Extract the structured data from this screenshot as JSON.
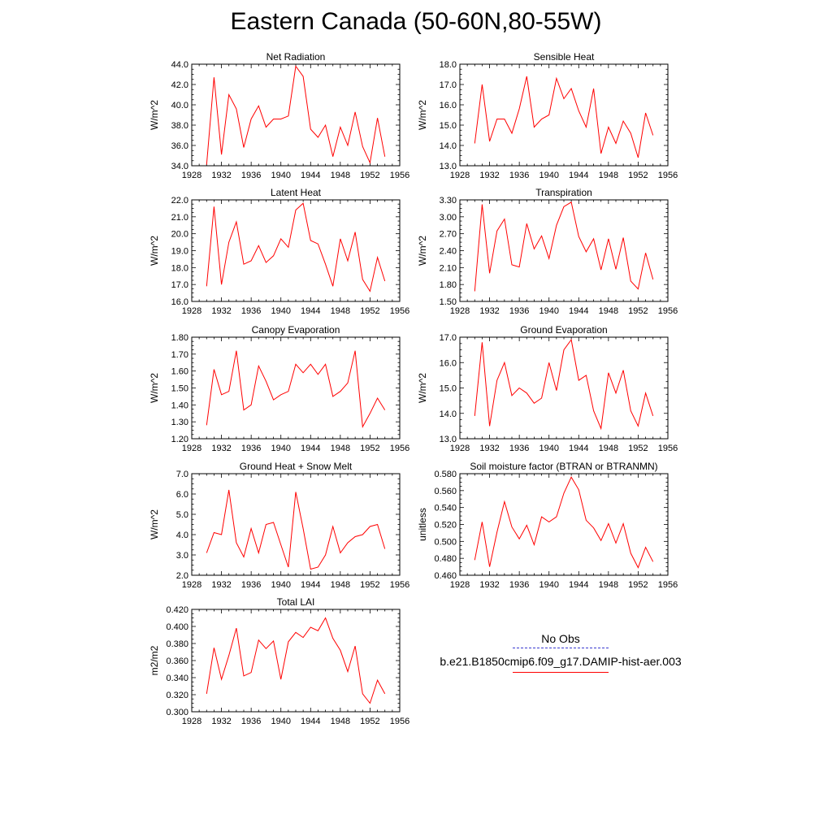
{
  "figure": {
    "title": "Eastern Canada (50-60N,80-55W)",
    "line_color": "#ff0000",
    "obs_color": "#3a3ad0"
  },
  "legend": {
    "obs_label": "No Obs",
    "model_label": "b.e21.B1850cmip6.f09_g17.DAMIP-hist-aer.003"
  },
  "chart_data": [
    {
      "type": "line",
      "title": "Net Radiation",
      "ylabel": "W/m^2",
      "xlim": [
        1928,
        1956
      ],
      "xticks": [
        1928,
        1932,
        1936,
        1940,
        1944,
        1948,
        1952,
        1956
      ],
      "ylim": [
        34.0,
        44.0
      ],
      "yticks": [
        "34.0",
        "36.0",
        "38.0",
        "40.0",
        "42.0",
        "44.0"
      ],
      "x": [
        1930,
        1931,
        1932,
        1933,
        1934,
        1935,
        1936,
        1937,
        1938,
        1939,
        1940,
        1941,
        1942,
        1943,
        1944,
        1945,
        1946,
        1947,
        1948,
        1949,
        1950,
        1951,
        1952,
        1953,
        1954
      ],
      "series": [
        {
          "values": [
            34.1,
            42.7,
            35.1,
            41.0,
            39.6,
            35.8,
            38.6,
            39.9,
            37.8,
            38.6,
            38.6,
            38.9,
            43.8,
            42.8,
            37.6,
            36.8,
            38.0,
            34.9,
            37.8,
            36.0,
            39.3,
            35.9,
            34.3,
            38.7,
            34.9
          ]
        }
      ]
    },
    {
      "type": "line",
      "title": "Sensible Heat",
      "ylabel": "W/m^2",
      "xlim": [
        1928,
        1956
      ],
      "xticks": [
        1928,
        1932,
        1936,
        1940,
        1944,
        1948,
        1952,
        1956
      ],
      "ylim": [
        13.0,
        18.0
      ],
      "yticks": [
        "13.0",
        "14.0",
        "15.0",
        "16.0",
        "17.0",
        "18.0"
      ],
      "x": [
        1930,
        1931,
        1932,
        1933,
        1934,
        1935,
        1936,
        1937,
        1938,
        1939,
        1940,
        1941,
        1942,
        1943,
        1944,
        1945,
        1946,
        1947,
        1948,
        1949,
        1950,
        1951,
        1952,
        1953,
        1954
      ],
      "series": [
        {
          "values": [
            14.1,
            17.0,
            14.2,
            15.3,
            15.3,
            14.6,
            15.8,
            17.4,
            14.9,
            15.3,
            15.5,
            17.3,
            16.3,
            16.8,
            15.7,
            14.9,
            16.8,
            13.6,
            14.9,
            14.1,
            15.2,
            14.6,
            13.4,
            15.6,
            14.5
          ]
        }
      ]
    },
    {
      "type": "line",
      "title": "Latent Heat",
      "ylabel": "W/m^2",
      "xlim": [
        1928,
        1956
      ],
      "xticks": [
        1928,
        1932,
        1936,
        1940,
        1944,
        1948,
        1952,
        1956
      ],
      "ylim": [
        16.0,
        22.0
      ],
      "yticks": [
        "16.0",
        "17.0",
        "18.0",
        "19.0",
        "20.0",
        "21.0",
        "22.0"
      ],
      "x": [
        1930,
        1931,
        1932,
        1933,
        1934,
        1935,
        1936,
        1937,
        1938,
        1939,
        1940,
        1941,
        1942,
        1943,
        1944,
        1945,
        1946,
        1947,
        1948,
        1949,
        1950,
        1951,
        1952,
        1953,
        1954
      ],
      "series": [
        {
          "values": [
            16.9,
            21.6,
            17.0,
            19.5,
            20.7,
            18.2,
            18.4,
            19.3,
            18.3,
            18.7,
            19.7,
            19.2,
            21.4,
            21.8,
            19.6,
            19.4,
            18.2,
            16.9,
            19.7,
            18.4,
            20.1,
            17.3,
            16.6,
            18.6,
            17.2
          ]
        }
      ]
    },
    {
      "type": "line",
      "title": "Transpiration",
      "ylabel": "W/m^2",
      "xlim": [
        1928,
        1956
      ],
      "xticks": [
        1928,
        1932,
        1936,
        1940,
        1944,
        1948,
        1952,
        1956
      ],
      "ylim": [
        1.5,
        3.3
      ],
      "yticks": [
        "1.50",
        "1.80",
        "2.10",
        "2.40",
        "2.70",
        "3.00",
        "3.30"
      ],
      "x": [
        1930,
        1931,
        1932,
        1933,
        1934,
        1935,
        1936,
        1937,
        1938,
        1939,
        1940,
        1941,
        1942,
        1943,
        1944,
        1945,
        1946,
        1947,
        1948,
        1949,
        1950,
        1951,
        1952,
        1953,
        1954
      ],
      "series": [
        {
          "values": [
            1.68,
            3.22,
            2.0,
            2.75,
            2.96,
            2.15,
            2.11,
            2.88,
            2.43,
            2.66,
            2.26,
            2.85,
            3.18,
            3.26,
            2.65,
            2.38,
            2.61,
            2.06,
            2.61,
            2.07,
            2.63,
            1.86,
            1.72,
            2.36,
            1.89
          ]
        }
      ]
    },
    {
      "type": "line",
      "title": "Canopy Evaporation",
      "ylabel": "W/m^2",
      "xlim": [
        1928,
        1956
      ],
      "xticks": [
        1928,
        1932,
        1936,
        1940,
        1944,
        1948,
        1952,
        1956
      ],
      "ylim": [
        1.2,
        1.8
      ],
      "yticks": [
        "1.20",
        "1.30",
        "1.40",
        "1.50",
        "1.60",
        "1.70",
        "1.80"
      ],
      "x": [
        1930,
        1931,
        1932,
        1933,
        1934,
        1935,
        1936,
        1937,
        1938,
        1939,
        1940,
        1941,
        1942,
        1943,
        1944,
        1945,
        1946,
        1947,
        1948,
        1949,
        1950,
        1951,
        1952,
        1953,
        1954
      ],
      "series": [
        {
          "values": [
            1.28,
            1.61,
            1.46,
            1.48,
            1.72,
            1.37,
            1.4,
            1.63,
            1.54,
            1.43,
            1.46,
            1.48,
            1.64,
            1.59,
            1.64,
            1.58,
            1.64,
            1.45,
            1.48,
            1.53,
            1.72,
            1.27,
            1.35,
            1.44,
            1.37
          ]
        }
      ]
    },
    {
      "type": "line",
      "title": "Ground Evaporation",
      "ylabel": "W/m^2",
      "xlim": [
        1928,
        1956
      ],
      "xticks": [
        1928,
        1932,
        1936,
        1940,
        1944,
        1948,
        1952,
        1956
      ],
      "ylim": [
        13.0,
        17.0
      ],
      "yticks": [
        "13.0",
        "14.0",
        "15.0",
        "16.0",
        "17.0"
      ],
      "x": [
        1930,
        1931,
        1932,
        1933,
        1934,
        1935,
        1936,
        1937,
        1938,
        1939,
        1940,
        1941,
        1942,
        1943,
        1944,
        1945,
        1946,
        1947,
        1948,
        1949,
        1950,
        1951,
        1952,
        1953,
        1954
      ],
      "series": [
        {
          "values": [
            13.9,
            16.8,
            13.5,
            15.3,
            16.0,
            14.7,
            15.0,
            14.8,
            14.4,
            14.6,
            16.0,
            14.9,
            16.5,
            16.9,
            15.3,
            15.5,
            14.1,
            13.4,
            15.6,
            14.8,
            15.7,
            14.1,
            13.5,
            14.8,
            13.9
          ]
        }
      ]
    },
    {
      "type": "line",
      "title": "Ground Heat + Snow Melt",
      "ylabel": "W/m^2",
      "xlim": [
        1928,
        1956
      ],
      "xticks": [
        1928,
        1932,
        1936,
        1940,
        1944,
        1948,
        1952,
        1956
      ],
      "ylim": [
        2.0,
        7.0
      ],
      "yticks": [
        "2.0",
        "3.0",
        "4.0",
        "5.0",
        "6.0",
        "7.0"
      ],
      "x": [
        1930,
        1931,
        1932,
        1933,
        1934,
        1935,
        1936,
        1937,
        1938,
        1939,
        1940,
        1941,
        1942,
        1943,
        1944,
        1945,
        1946,
        1947,
        1948,
        1949,
        1950,
        1951,
        1952,
        1953,
        1954
      ],
      "series": [
        {
          "values": [
            3.1,
            4.1,
            4.0,
            6.2,
            3.6,
            2.9,
            4.3,
            3.1,
            4.5,
            4.6,
            3.5,
            2.4,
            6.1,
            4.3,
            2.3,
            2.4,
            3.0,
            4.4,
            3.1,
            3.6,
            3.9,
            4.0,
            4.4,
            4.5,
            3.3
          ]
        }
      ]
    },
    {
      "type": "line",
      "title": "Soil moisture factor (BTRAN or BTRANMN)",
      "ylabel": "unitless",
      "xlim": [
        1928,
        1956
      ],
      "xticks": [
        1928,
        1932,
        1936,
        1940,
        1944,
        1948,
        1952,
        1956
      ],
      "ylim": [
        0.46,
        0.58
      ],
      "yticks": [
        "0.460",
        "0.480",
        "0.500",
        "0.520",
        "0.540",
        "0.560",
        "0.580"
      ],
      "x": [
        1930,
        1931,
        1932,
        1933,
        1934,
        1935,
        1936,
        1937,
        1938,
        1939,
        1940,
        1941,
        1942,
        1943,
        1944,
        1945,
        1946,
        1947,
        1948,
        1949,
        1950,
        1951,
        1952,
        1953,
        1954
      ],
      "series": [
        {
          "values": [
            0.478,
            0.523,
            0.47,
            0.511,
            0.547,
            0.517,
            0.503,
            0.519,
            0.496,
            0.529,
            0.523,
            0.529,
            0.557,
            0.576,
            0.561,
            0.525,
            0.516,
            0.501,
            0.521,
            0.498,
            0.521,
            0.486,
            0.469,
            0.493,
            0.476
          ]
        }
      ]
    },
    {
      "type": "line",
      "title": "Total LAI",
      "ylabel": "m2/m2",
      "xlim": [
        1928,
        1956
      ],
      "xticks": [
        1928,
        1932,
        1936,
        1940,
        1944,
        1948,
        1952,
        1956
      ],
      "ylim": [
        0.3,
        0.42
      ],
      "yticks": [
        "0.300",
        "0.320",
        "0.340",
        "0.360",
        "0.380",
        "0.400",
        "0.420"
      ],
      "x": [
        1930,
        1931,
        1932,
        1933,
        1934,
        1935,
        1936,
        1937,
        1938,
        1939,
        1940,
        1941,
        1942,
        1943,
        1944,
        1945,
        1946,
        1947,
        1948,
        1949,
        1950,
        1951,
        1952,
        1953,
        1954
      ],
      "series": [
        {
          "values": [
            0.321,
            0.375,
            0.338,
            0.366,
            0.398,
            0.342,
            0.346,
            0.384,
            0.374,
            0.383,
            0.338,
            0.382,
            0.393,
            0.387,
            0.399,
            0.395,
            0.41,
            0.386,
            0.372,
            0.347,
            0.377,
            0.321,
            0.31,
            0.337,
            0.321
          ]
        }
      ]
    }
  ]
}
